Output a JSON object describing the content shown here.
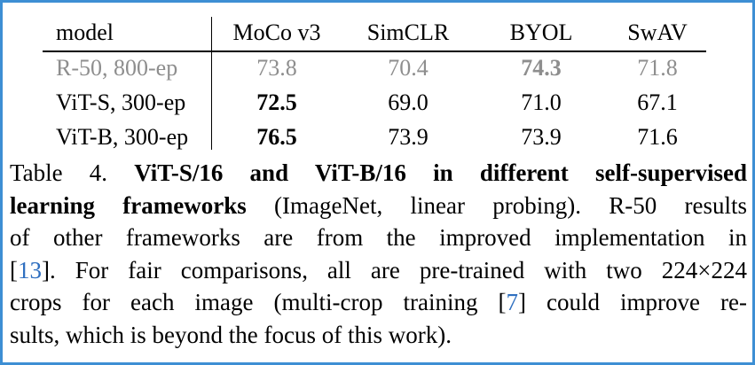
{
  "table": {
    "header": {
      "model": "model",
      "cols": [
        "MoCo v3",
        "SimCLR",
        "BYOL",
        "SwAV"
      ]
    },
    "rows": [
      {
        "model": "R-50, 800-ep",
        "values": [
          "73.8",
          "70.4",
          "74.3",
          "71.8"
        ]
      },
      {
        "model": "ViT-S, 300-ep",
        "values": [
          "72.5",
          "69.0",
          "71.0",
          "67.1"
        ]
      },
      {
        "model": "ViT-B, 300-ep",
        "values": [
          "76.5",
          "73.9",
          "73.9",
          "71.6"
        ]
      }
    ]
  },
  "caption": {
    "label": "Table 4.",
    "bold_1": "ViT-S/16 and ViT-B/16 in different self-supervised",
    "bold_2": "learning frameworks",
    "text_2": "(ImageNet, linear probing).  R-50 results",
    "text_3": "of other frameworks are from the improved implementation in",
    "ref_a_open": "[",
    "ref_a": "13",
    "ref_a_close": "].",
    "text_4": "For fair comparisons, all are pre-trained with two 224×224",
    "text_5a": "crops for each image (multi-crop training",
    "ref_b_open": "[",
    "ref_b": "7",
    "ref_b_close": "]",
    "text_5b": "could improve re-",
    "text_6": "sults, which is beyond the focus of this work)."
  },
  "colors": {
    "border": "#3d8fd4",
    "muted_row": "#8e8e8e",
    "reference_link": "#2f6fc0"
  }
}
